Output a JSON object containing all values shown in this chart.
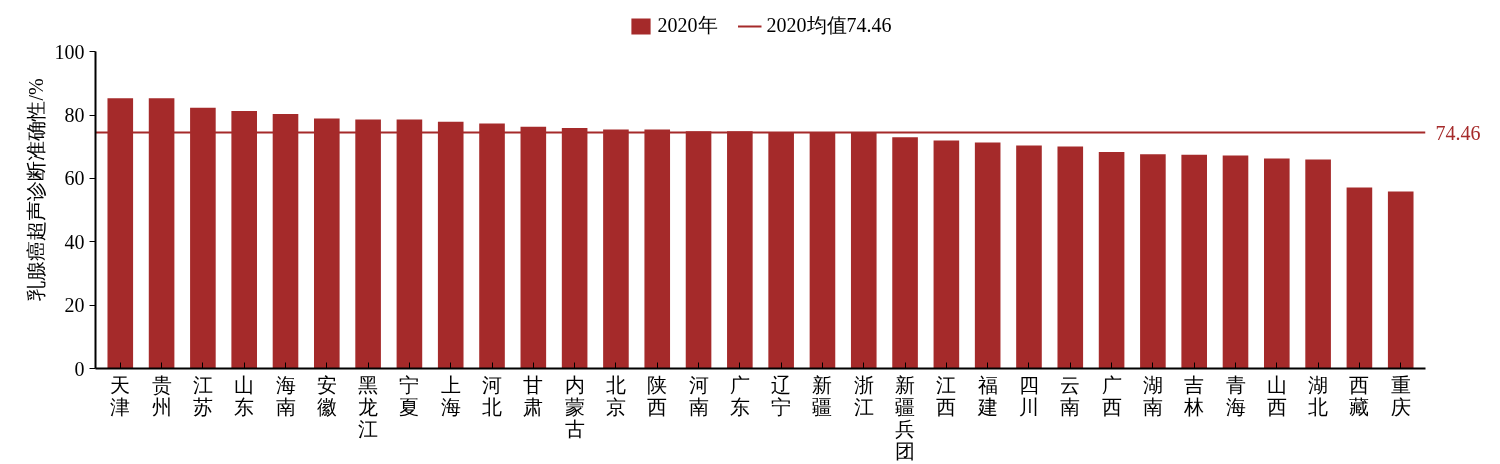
{
  "chart_data": {
    "type": "bar",
    "ylabel": "乳腺癌超声诊断准确性/%",
    "categories": [
      "天津",
      "贵州",
      "江苏",
      "山东",
      "海南",
      "安徽",
      "黑龙江",
      "宁夏",
      "上海",
      "河北",
      "甘肃",
      "内蒙古",
      "北京",
      "陕西",
      "河南",
      "广东",
      "辽宁",
      "新疆",
      "浙江",
      "新疆兵团",
      "江西",
      "福建",
      "四川",
      "云南",
      "广西",
      "湖南",
      "吉林",
      "青海",
      "山西",
      "湖北",
      "西藏",
      "重庆"
    ],
    "series": [
      {
        "name": "2020年",
        "color": "#a52a2a",
        "values": [
          85.3,
          85.3,
          82.3,
          81.3,
          80.3,
          78.9,
          78.6,
          78.6,
          77.9,
          77.3,
          76.3,
          75.9,
          75.4,
          75.4,
          74.9,
          74.9,
          74.6,
          74.5,
          74.5,
          73.0,
          72.0,
          71.3,
          70.4,
          70.1,
          68.3,
          67.6,
          67.5,
          67.2,
          66.3,
          66.0,
          57.1,
          55.9
        ]
      }
    ],
    "ylim": [
      0,
      100
    ],
    "yticks": [
      0,
      20,
      40,
      60,
      80,
      100
    ],
    "ref_lines": [
      {
        "axis": "y",
        "value": 74.46,
        "label": "2020均值74.46",
        "color": "#a52a2a"
      }
    ],
    "annotations": [
      "74.46"
    ],
    "legend": "top",
    "grid": false
  }
}
